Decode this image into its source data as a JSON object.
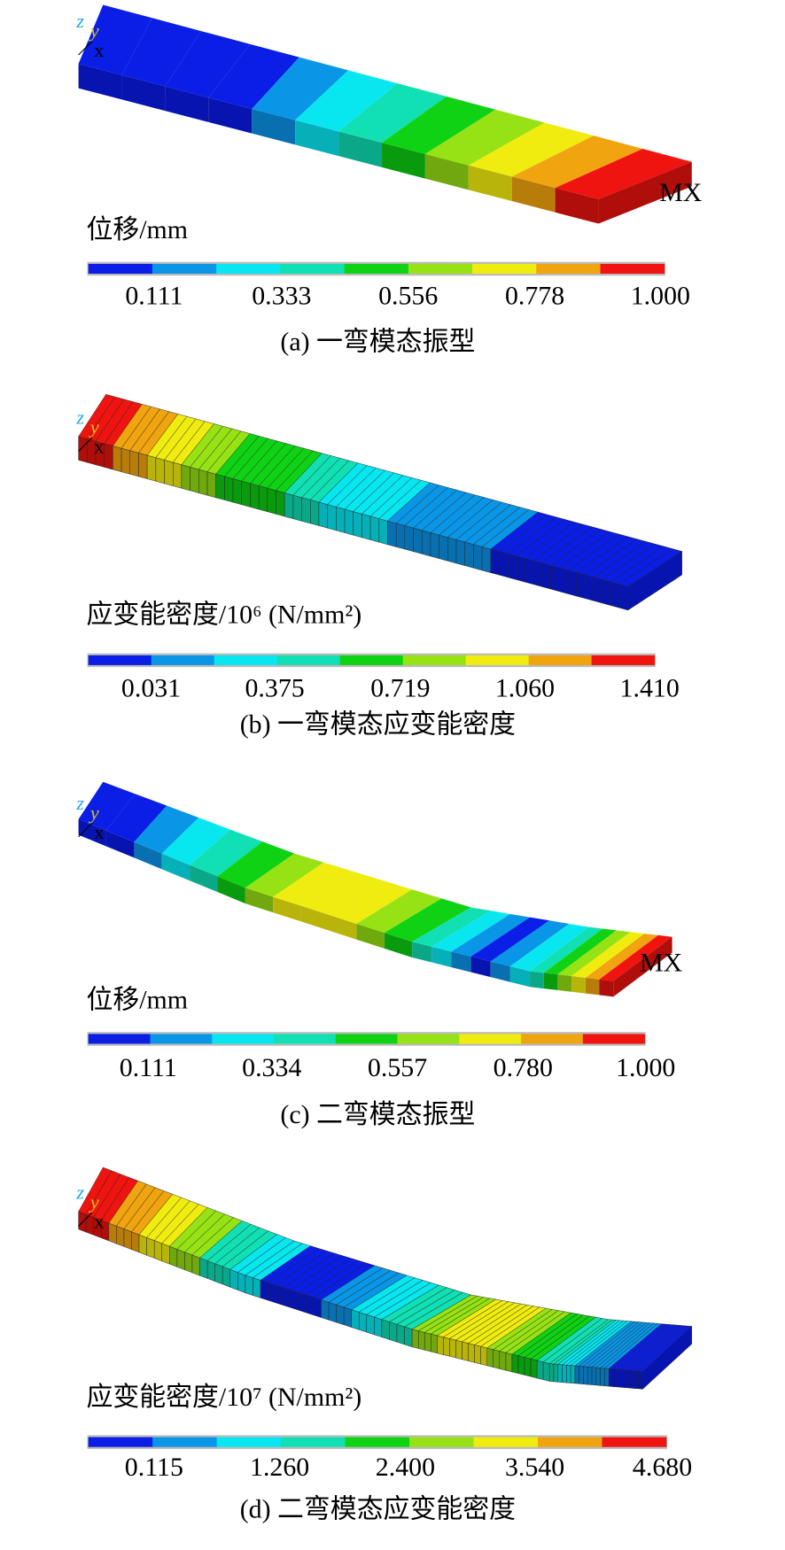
{
  "panels": [
    {
      "triad": [
        "z",
        "y",
        "x"
      ],
      "marker": "MX",
      "legend_title": "位移/mm",
      "ticks": [
        "0.111",
        "0.333",
        "0.556",
        "0.778",
        "1.000"
      ],
      "caption": "(a) 一弯模态振型"
    },
    {
      "triad": [
        "z",
        "y",
        "x"
      ],
      "legend_title": "应变能密度/10⁶ (N/mm²)",
      "ticks": [
        "0.031",
        "0.375",
        "0.719",
        "1.060",
        "1.410"
      ],
      "caption": "(b) 一弯模态应变能密度"
    },
    {
      "triad": [
        "z",
        "y",
        "x"
      ],
      "marker": "MX",
      "legend_title": "位移/mm",
      "ticks": [
        "0.111",
        "0.334",
        "0.557",
        "0.780",
        "1.000"
      ],
      "caption": "(c) 二弯模态振型"
    },
    {
      "triad": [
        "z",
        "y",
        "x"
      ],
      "legend_title": "应变能密度/10⁷ (N/mm²)",
      "ticks": [
        "0.115",
        "1.260",
        "2.400",
        "3.540",
        "4.680"
      ],
      "caption": "(d) 二弯模态应变能密度"
    }
  ]
}
